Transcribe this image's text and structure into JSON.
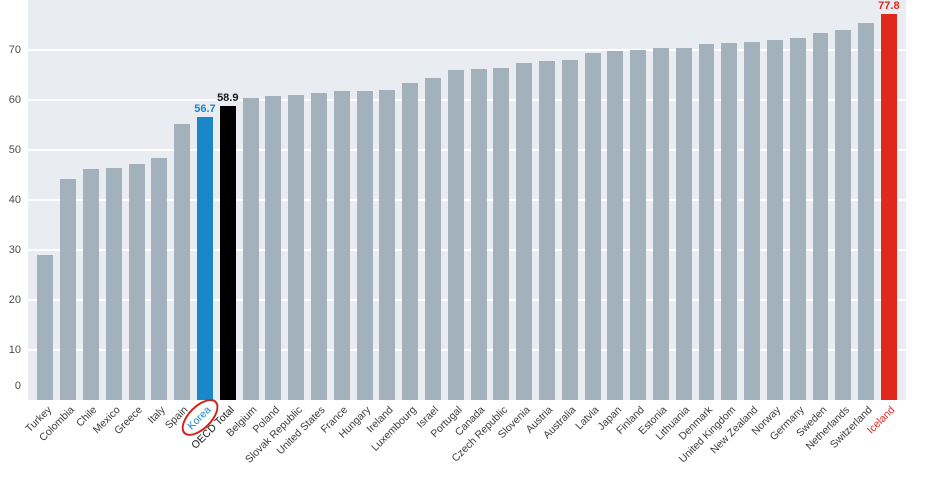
{
  "chart_data": {
    "type": "bar",
    "title": "",
    "xlabel": "",
    "ylabel": "",
    "ylim": [
      0,
      80
    ],
    "yticks": [
      0,
      10,
      20,
      30,
      40,
      50,
      60,
      70
    ],
    "grid": true,
    "legend": "none",
    "plot_background": "#e9edf1",
    "gridline_color": "#ffffff",
    "bar_color_default": "#a2b1bc",
    "bars": [
      {
        "label": "Turkey",
        "value": 29.0
      },
      {
        "label": "Colombia",
        "value": 44.2
      },
      {
        "label": "Chile",
        "value": 46.2
      },
      {
        "label": "Mexico",
        "value": 46.5
      },
      {
        "label": "Greece",
        "value": 47.2
      },
      {
        "label": "Italy",
        "value": 48.5
      },
      {
        "label": "Spain",
        "value": 55.2
      },
      {
        "label": "Korea",
        "value": 56.7
      },
      {
        "label": "OECD Total",
        "value": 58.9
      },
      {
        "label": "Belgium",
        "value": 60.5
      },
      {
        "label": "Poland",
        "value": 60.9
      },
      {
        "label": "Slovak Republic",
        "value": 61.0
      },
      {
        "label": "United States",
        "value": 61.5
      },
      {
        "label": "France",
        "value": 61.8
      },
      {
        "label": "Hungary",
        "value": 61.9
      },
      {
        "label": "Ireland",
        "value": 62.0
      },
      {
        "label": "Luxembourg",
        "value": 63.4
      },
      {
        "label": "Israel",
        "value": 64.5
      },
      {
        "label": "Portugal",
        "value": 66.0
      },
      {
        "label": "Canada",
        "value": 66.3
      },
      {
        "label": "Czech Republic",
        "value": 66.5
      },
      {
        "label": "Slovenia",
        "value": 67.4
      },
      {
        "label": "Austria",
        "value": 67.9
      },
      {
        "label": "Australia",
        "value": 68.1
      },
      {
        "label": "Latvia",
        "value": 69.5
      },
      {
        "label": "Japan",
        "value": 69.9
      },
      {
        "label": "Finland",
        "value": 70.0
      },
      {
        "label": "Estonia",
        "value": 70.4
      },
      {
        "label": "Lithuania",
        "value": 70.5
      },
      {
        "label": "Denmark",
        "value": 71.3
      },
      {
        "label": "United Kingdom",
        "value": 71.5
      },
      {
        "label": "New Zealand",
        "value": 71.6
      },
      {
        "label": "Norway",
        "value": 72.0
      },
      {
        "label": "Germany",
        "value": 72.4
      },
      {
        "label": "Sweden",
        "value": 73.4
      },
      {
        "label": "Netherlands",
        "value": 74.0
      },
      {
        "label": "Switzerland",
        "value": 75.5
      },
      {
        "label": "Iceland",
        "value": 77.8
      }
    ],
    "highlights": {
      "Korea": {
        "bar_color": "#1a87c8",
        "label_color": "#1a87c8",
        "value_label": "56.7",
        "circled": true
      },
      "OECD Total": {
        "bar_color": "#000000",
        "label_color": "#1a1a1a",
        "value_label": "58.9",
        "circled": false
      },
      "Iceland": {
        "bar_color": "#e0291c",
        "label_color": "#e0291c",
        "value_label": "77.8",
        "circled": false
      }
    },
    "annotation": {
      "type": "hand-drawn-red-circle",
      "target": "Korea",
      "color": "#d02318"
    }
  }
}
